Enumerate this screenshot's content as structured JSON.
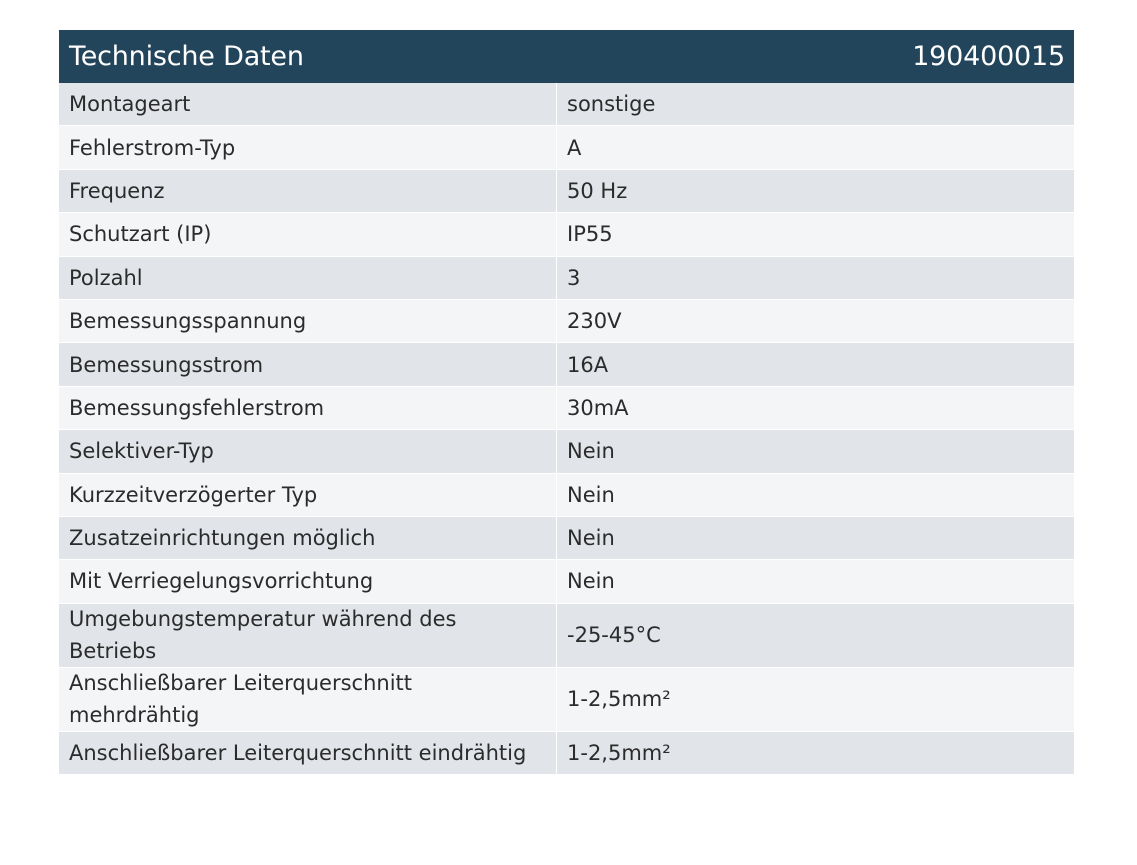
{
  "header": {
    "title": "Technische Daten",
    "article_number": "190400015"
  },
  "rows": [
    {
      "label": "Montageart",
      "value": "sonstige"
    },
    {
      "label": "Fehlerstrom-Typ",
      "value": "A"
    },
    {
      "label": "Frequenz",
      "value": "50 Hz"
    },
    {
      "label": "Schutzart (IP)",
      "value": "IP55"
    },
    {
      "label": "Polzahl",
      "value": "3"
    },
    {
      "label": "Bemessungsspannung",
      "value": "230V"
    },
    {
      "label": "Bemessungsstrom",
      "value": "16A"
    },
    {
      "label": "Bemessungsfehlerstrom",
      "value": "30mA"
    },
    {
      "label": "Selektiver-Typ",
      "value": "Nein"
    },
    {
      "label": "Kurzzeitverzögerter Typ",
      "value": "Nein"
    },
    {
      "label": "Zusatzeinrichtungen möglich",
      "value": "Nein"
    },
    {
      "label": "Mit Verriegelungsvorrichtung",
      "value": "Nein"
    },
    {
      "label": "Umgebungstemperatur während des Betriebs",
      "value": "-25-45°C"
    },
    {
      "label": "Anschließbarer Leiterquerschnitt mehrdrähtig",
      "value": "1-2,5mm²"
    },
    {
      "label": "Anschließbarer Leiterquerschnitt eindrähtig",
      "value": "1-2,5mm²"
    }
  ]
}
